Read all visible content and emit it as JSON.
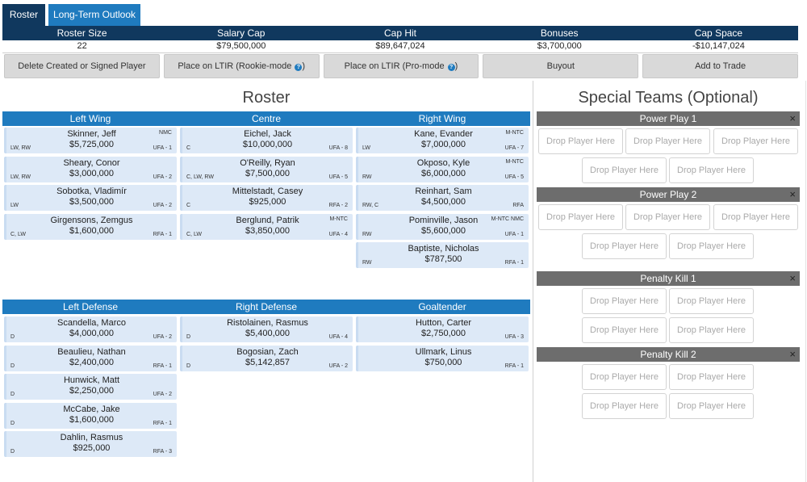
{
  "tabs": [
    "Roster",
    "Long-Term Outlook"
  ],
  "summary": {
    "headers": [
      "Roster Size",
      "Salary Cap",
      "Cap Hit",
      "Bonuses",
      "Cap Space"
    ],
    "values": [
      "22",
      "$79,500,000",
      "$89,647,024",
      "$3,700,000",
      "-$10,147,024"
    ]
  },
  "actions": {
    "create": "Delete Created or Signed Player",
    "ltir_rookie": "Place on LTIR (Rookie-mode ",
    "ltir_pro": "Place on LTIR (Pro-mode ",
    "help_glyph": "?",
    "close_paren": ")",
    "buyout": "Buyout",
    "trade": "Add to Trade"
  },
  "roster_title": "Roster",
  "special_title": "Special Teams (Optional)",
  "forwards_headers": [
    "Left Wing",
    "Centre",
    "Right Wing"
  ],
  "defense_headers": [
    "Left Defense",
    "Right Defense",
    "Goaltender"
  ],
  "left_wing": [
    {
      "name": "Skinner, Jeff",
      "salary": "$5,725,000",
      "pos": "LW, RW",
      "contract": "UFA - 1",
      "clause": "NMC"
    },
    {
      "name": "Sheary, Conor",
      "salary": "$3,000,000",
      "pos": "LW, RW",
      "contract": "UFA - 2",
      "clause": ""
    },
    {
      "name": "Sobotka, Vladimír",
      "salary": "$3,500,000",
      "pos": "LW",
      "contract": "UFA - 2",
      "clause": ""
    },
    {
      "name": "Girgensons, Zemgus",
      "salary": "$1,600,000",
      "pos": "C, LW",
      "contract": "RFA - 1",
      "clause": ""
    }
  ],
  "centre": [
    {
      "name": "Eichel, Jack",
      "salary": "$10,000,000",
      "pos": "C",
      "contract": "UFA - 8",
      "clause": ""
    },
    {
      "name": "O'Reilly, Ryan",
      "salary": "$7,500,000",
      "pos": "C, LW, RW",
      "contract": "UFA - 5",
      "clause": ""
    },
    {
      "name": "Mittelstadt, Casey",
      "salary": "$925,000",
      "pos": "C",
      "contract": "RFA - 2",
      "clause": ""
    },
    {
      "name": "Berglund, Patrik",
      "salary": "$3,850,000",
      "pos": "C, LW",
      "contract": "UFA - 4",
      "clause": "M-NTC"
    }
  ],
  "right_wing": [
    {
      "name": "Kane, Evander",
      "salary": "$7,000,000",
      "pos": "LW",
      "contract": "UFA - 7",
      "clause": "M-NTC"
    },
    {
      "name": "Okposo, Kyle",
      "salary": "$6,000,000",
      "pos": "RW",
      "contract": "UFA - 5",
      "clause": "M-NTC"
    },
    {
      "name": "Reinhart, Sam",
      "salary": "$4,500,000",
      "pos": "RW, C",
      "contract": "RFA",
      "clause": ""
    },
    {
      "name": "Pominville, Jason",
      "salary": "$5,600,000",
      "pos": "RW",
      "contract": "UFA - 1",
      "clause": "M-NTC NMC"
    },
    {
      "name": "Baptiste, Nicholas",
      "salary": "$787,500",
      "pos": "RW",
      "contract": "RFA - 1",
      "clause": ""
    }
  ],
  "left_defense": [
    {
      "name": "Scandella, Marco",
      "salary": "$4,000,000",
      "pos": "D",
      "contract": "UFA - 2",
      "clause": ""
    },
    {
      "name": "Beaulieu, Nathan",
      "salary": "$2,400,000",
      "pos": "D",
      "contract": "RFA - 1",
      "clause": ""
    },
    {
      "name": "Hunwick, Matt",
      "salary": "$2,250,000",
      "pos": "D",
      "contract": "UFA - 2",
      "clause": ""
    },
    {
      "name": "McCabe, Jake",
      "salary": "$1,600,000",
      "pos": "D",
      "contract": "RFA - 1",
      "clause": ""
    },
    {
      "name": "Dahlin, Rasmus",
      "salary": "$925,000",
      "pos": "D",
      "contract": "RFA - 3",
      "clause": ""
    }
  ],
  "right_defense": [
    {
      "name": "Ristolainen, Rasmus",
      "salary": "$5,400,000",
      "pos": "D",
      "contract": "UFA - 4",
      "clause": ""
    },
    {
      "name": "Bogosian, Zach",
      "salary": "$5,142,857",
      "pos": "D",
      "contract": "UFA - 2",
      "clause": ""
    }
  ],
  "goaltender": [
    {
      "name": "Hutton, Carter",
      "salary": "$2,750,000",
      "pos": "",
      "contract": "UFA - 3",
      "clause": ""
    },
    {
      "name": "Ullmark, Linus",
      "salary": "$750,000",
      "pos": "",
      "contract": "RFA - 1",
      "clause": ""
    }
  ],
  "special_teams": [
    {
      "title": "Power Play 1",
      "slots": 5
    },
    {
      "title": "Power Play 2",
      "slots": 5
    },
    {
      "title": "Penalty Kill 1",
      "slots": 4
    },
    {
      "title": "Penalty Kill 2",
      "slots": 4
    }
  ],
  "drop_label": "Drop Player Here",
  "close_glyph": "×",
  "colors": {
    "dark_navy": "#10385e",
    "blue": "#1f7bbf",
    "card": "#dde9f7",
    "st_header": "#6d6d6d"
  }
}
